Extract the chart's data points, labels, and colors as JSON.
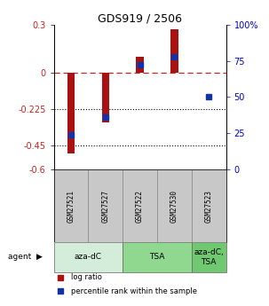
{
  "title": "GDS919 / 2506",
  "samples": [
    "GSM27521",
    "GSM27527",
    "GSM27522",
    "GSM27530",
    "GSM27523"
  ],
  "log_ratios": [
    -0.5,
    -0.305,
    0.1,
    0.27,
    0.0
  ],
  "percentile_ranks": [
    24,
    36,
    72,
    78,
    50
  ],
  "ylim_left": [
    -0.6,
    0.3
  ],
  "ylim_right": [
    0,
    100
  ],
  "yticks_left": [
    0.3,
    0,
    -0.225,
    -0.45,
    -0.6
  ],
  "ytick_labels_left": [
    "0.3",
    "0",
    "-0.225",
    "-0.45",
    "-0.6"
  ],
  "yticks_right": [
    100,
    75,
    50,
    25,
    0
  ],
  "ytick_labels_right": [
    "100%",
    "75",
    "50",
    "25",
    "0"
  ],
  "hlines_dashed": [
    0
  ],
  "hlines_dotted": [
    -0.225,
    -0.45
  ],
  "bar_color_red": "#aa1111",
  "bar_color_blue": "#1133aa",
  "agent_groups": [
    {
      "label": "aza-dC",
      "span": [
        0,
        2
      ],
      "color": "#d4edda"
    },
    {
      "label": "TSA",
      "span": [
        2,
        4
      ],
      "color": "#90d890"
    },
    {
      "label": "aza-dC,\nTSA",
      "span": [
        4,
        5
      ],
      "color": "#70c870"
    }
  ],
  "sample_box_color": "#c8c8c8",
  "background_color": "#ffffff",
  "legend_items": [
    {
      "color": "#aa1111",
      "label": "log ratio"
    },
    {
      "color": "#1133aa",
      "label": "percentile rank within the sample"
    }
  ]
}
